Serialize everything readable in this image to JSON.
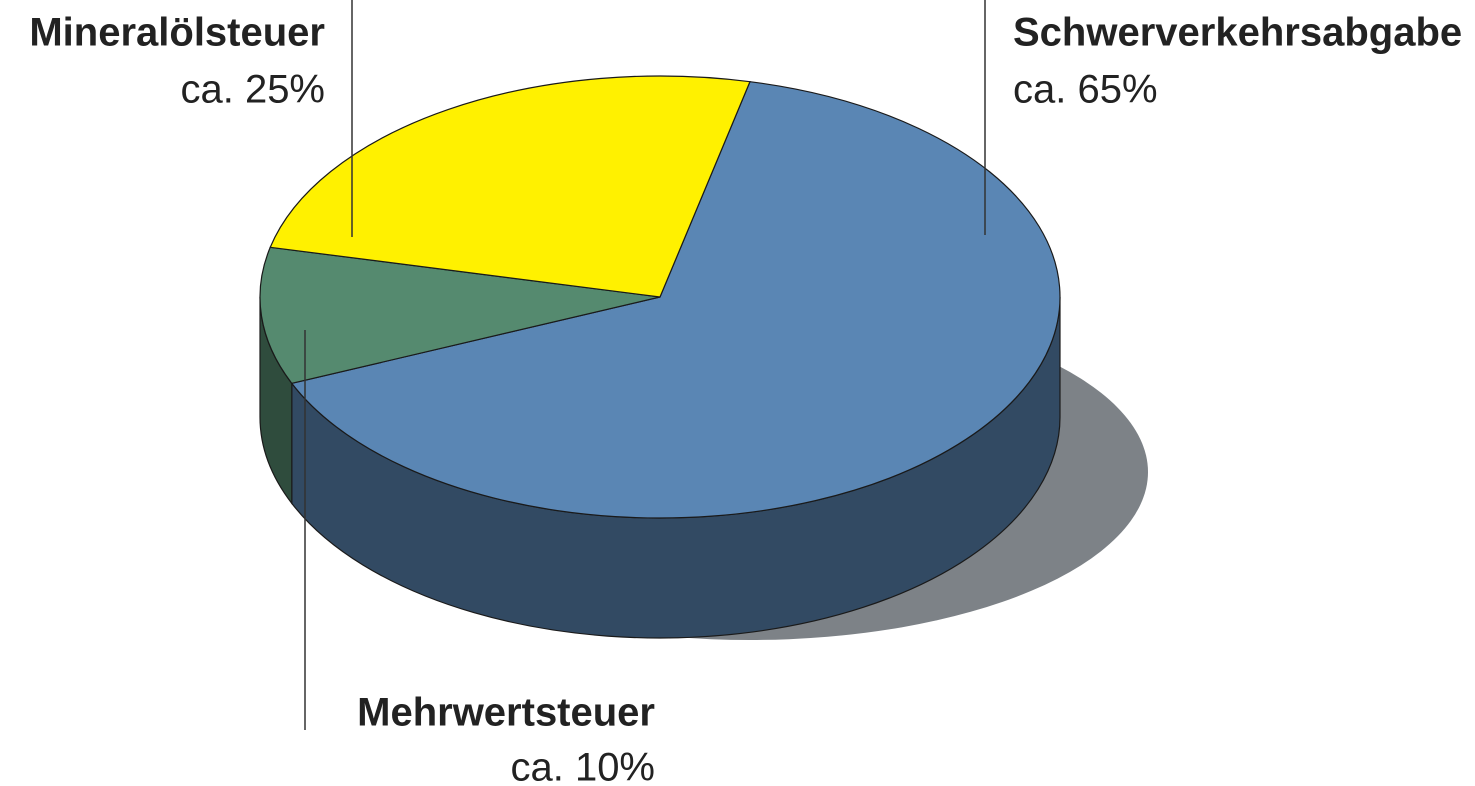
{
  "chart_data": {
    "type": "pie",
    "categories": [
      "Schwerverkehrsabgabe",
      "Mehrwertsteuer",
      "Mineralölsteuer"
    ],
    "values": [
      65,
      10,
      25
    ],
    "value_labels": [
      "ca. 65%",
      "ca. 10%",
      "ca. 25%"
    ],
    "colors": [
      "#5a86b4",
      "#558a6f",
      "#fff100"
    ]
  }
}
